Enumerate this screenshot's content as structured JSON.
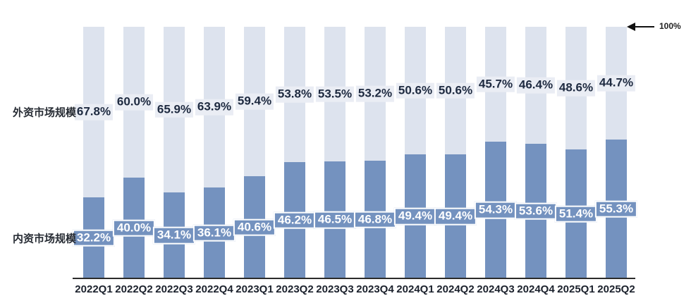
{
  "chart_data": {
    "type": "bar",
    "stacked": true,
    "normalized": "100%",
    "orientation": "vertical",
    "grid": false,
    "ylim": [
      0,
      100
    ],
    "categories": [
      "2022Q1",
      "2022Q2",
      "2022Q3",
      "2022Q4",
      "2023Q1",
      "2023Q2",
      "2023Q3",
      "2023Q4",
      "2024Q1",
      "2024Q2",
      "2024Q3",
      "2024Q4",
      "2025Q1",
      "2025Q2"
    ],
    "series": [
      {
        "name": "外资市场规模",
        "position": "top",
        "values": [
          67.8,
          60.0,
          65.9,
          63.9,
          59.4,
          53.8,
          53.5,
          53.2,
          50.6,
          50.6,
          45.7,
          46.4,
          48.6,
          44.7
        ],
        "labels": [
          "67.8%",
          "60.0%",
          "65.9%",
          "63.9%",
          "59.4%",
          "53.8%",
          "53.5%",
          "53.2%",
          "50.6%",
          "50.6%",
          "45.7%",
          "46.4%",
          "48.6%",
          "44.7%"
        ],
        "color": "#dde3ee",
        "label_bg": "#eaedf4",
        "label_color": "#1e2a40"
      },
      {
        "name": "内资市场规模",
        "position": "bottom",
        "values": [
          32.2,
          40.0,
          34.1,
          36.1,
          40.6,
          46.2,
          46.5,
          46.8,
          49.4,
          49.4,
          54.3,
          53.6,
          51.4,
          55.3
        ],
        "labels": [
          "32.2%",
          "40.0%",
          "34.1%",
          "36.1%",
          "40.6%",
          "46.2%",
          "46.5%",
          "46.8%",
          "49.4%",
          "49.4%",
          "54.3%",
          "53.6%",
          "51.4%",
          "55.3%"
        ],
        "color": "#7492bf",
        "label_bg": "#7492bf",
        "label_color": "#ffffff"
      }
    ],
    "top_reference": {
      "label": "100%"
    },
    "legend_position": "left-inline"
  },
  "colors": {
    "background": "#ffffff",
    "axis_line": "#2b2b2b",
    "category_text": "#1b212c",
    "arrow": "#111111"
  }
}
